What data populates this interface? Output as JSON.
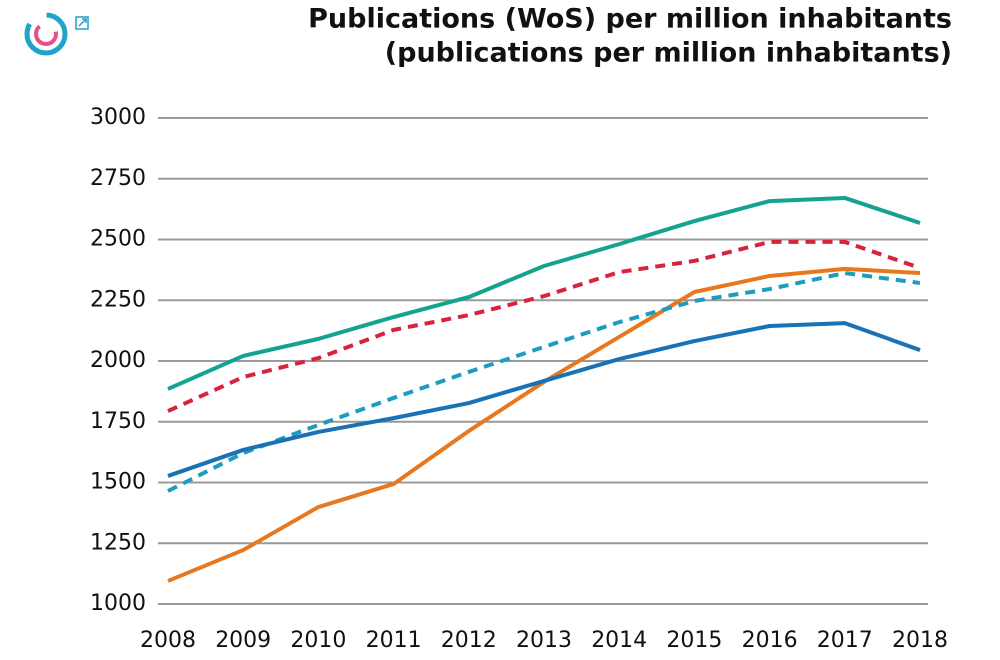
{
  "chart_data": {
    "type": "line",
    "title": "Publications (WoS) per million inhabitants",
    "subtitle": "(publications per million inhabitants)",
    "categories": [
      "2008",
      "2009",
      "2010",
      "2011",
      "2012",
      "2013",
      "2014",
      "2015",
      "2016",
      "2017",
      "2018"
    ],
    "series": [
      {
        "color": "#13a38f",
        "dash": false,
        "values": [
          1885,
          2021,
          2091,
          2181,
          2263,
          2391,
          2481,
          2576,
          2658,
          2671,
          2568
        ]
      },
      {
        "color": "#d7243c",
        "dash": true,
        "values": [
          1794,
          1934,
          2012,
          2128,
          2189,
          2267,
          2366,
          2412,
          2490,
          2490,
          2383
        ]
      },
      {
        "color": "#e8781f",
        "dash": false,
        "values": [
          1095,
          1222,
          1399,
          1494,
          1712,
          1914,
          2099,
          2284,
          2350,
          2379,
          2362
        ]
      },
      {
        "color": "#1c9cbf",
        "dash": true,
        "values": [
          1465,
          1621,
          1737,
          1848,
          1955,
          2058,
          2160,
          2247,
          2296,
          2362,
          2321
        ]
      },
      {
        "color": "#1a72b6",
        "dash": false,
        "values": [
          1527,
          1634,
          1708,
          1765,
          1827,
          1918,
          2008,
          2082,
          2144,
          2156,
          2045
        ]
      }
    ],
    "ylim": [
      1000,
      3000
    ],
    "yticks": [
      1000,
      1250,
      1500,
      1750,
      2000,
      2250,
      2500,
      2750,
      3000
    ],
    "grid": true
  }
}
